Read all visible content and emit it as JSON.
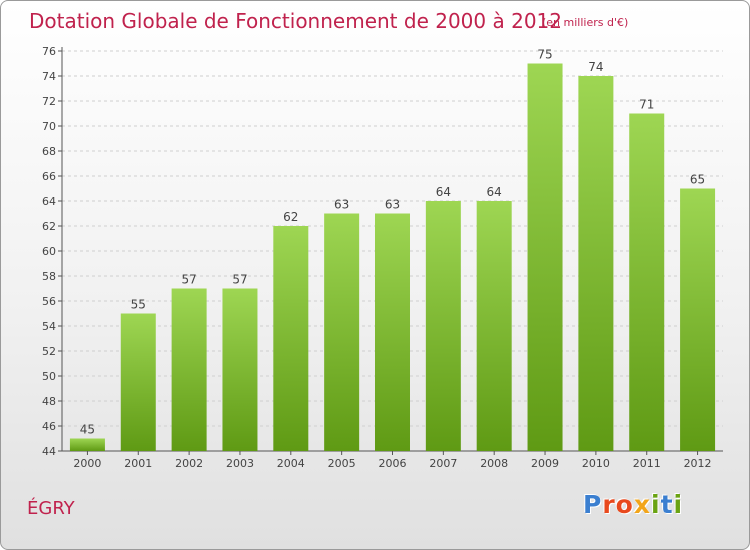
{
  "header": {
    "title": "Dotation Globale de Fonctionnement de 2000 à 2012",
    "subtitle": "(en milliers d'€)"
  },
  "footer": {
    "place": "ÉGRY",
    "logo": "Proxiti",
    "logo_colors": [
      "#3b7fd0",
      "#e8491d",
      "#e8491d",
      "#f2a51a",
      "#6aa312",
      "#3b7fd0",
      "#6aa312"
    ]
  },
  "colors": {
    "bar_top": "#9ed653",
    "bar_bottom": "#5f9a14",
    "label": "#444444",
    "axis": "#555555",
    "grid": "#cfcfcf"
  },
  "chart_data": {
    "type": "bar",
    "categories": [
      "2000",
      "2001",
      "2002",
      "2003",
      "2004",
      "2005",
      "2006",
      "2007",
      "2008",
      "2009",
      "2010",
      "2011",
      "2012"
    ],
    "values": [
      45,
      55,
      57,
      57,
      62,
      63,
      63,
      64,
      64,
      75,
      74,
      71,
      65
    ],
    "ylim": [
      44,
      76
    ],
    "yticks": [
      44,
      46,
      48,
      50,
      52,
      54,
      56,
      58,
      60,
      62,
      64,
      66,
      68,
      70,
      72,
      74,
      76
    ],
    "grid": "horizontal dashed",
    "data_labels": true
  }
}
